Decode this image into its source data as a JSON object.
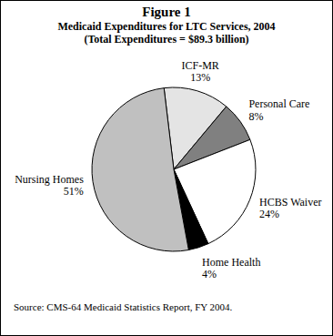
{
  "chart_data": {
    "type": "pie",
    "title": "Figure 1",
    "subtitle": [
      "Medicaid Expenditures for LTC Services, 2004",
      "(Total Expenditures = $89.3 billion)"
    ],
    "categories": [
      "ICF-MR",
      "Personal Care",
      "HCBS Waiver",
      "Home Health",
      "Nursing Homes"
    ],
    "values": [
      13,
      8,
      24,
      4,
      51
    ],
    "value_labels": [
      "13%",
      "8%",
      "24%",
      "4%",
      "51%"
    ],
    "colors": [
      "#e4e4e4",
      "#808080",
      "#ffffff",
      "#000000",
      "#c0c0c0"
    ],
    "data_labels": true,
    "caption": "Source: CMS-64 Medicaid Statistics Report, FY 2004."
  }
}
